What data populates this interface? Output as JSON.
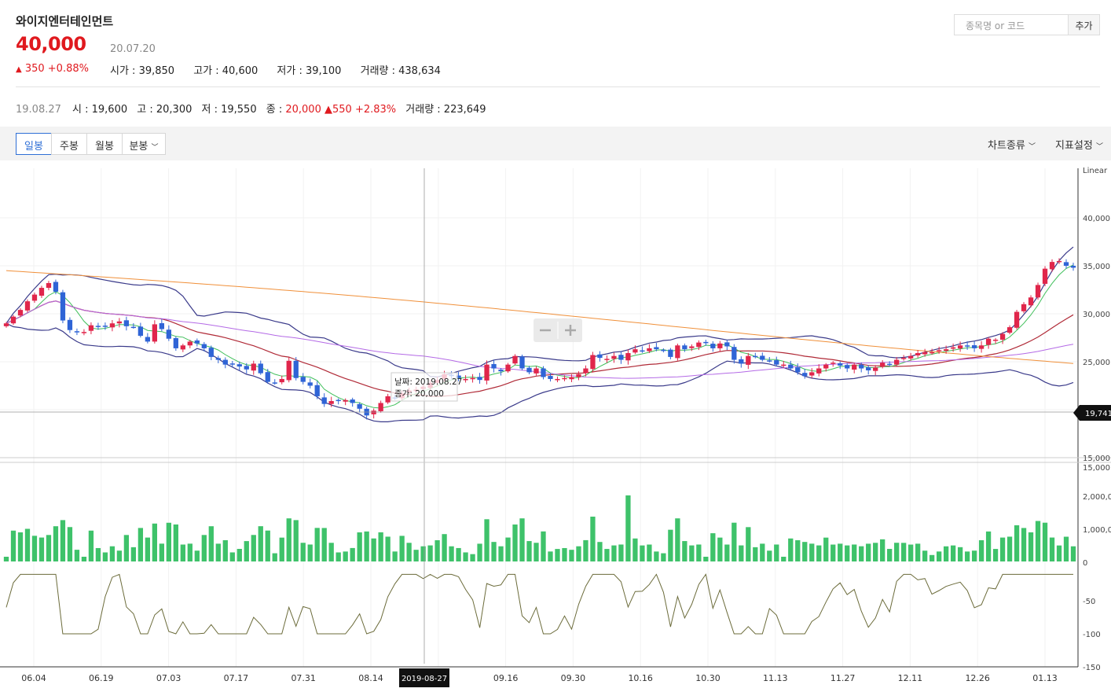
{
  "stock": {
    "name": "와이지엔터테인먼트",
    "price": "40,000",
    "date": "20.07.20",
    "change_arrow": "▲",
    "change": "350 +0.88%",
    "open": "시가 : 39,850",
    "high": "고가 : 40,600",
    "low": "저가 : 39,100",
    "volume": "거래량 : 438,634"
  },
  "search": {
    "placeholder": "종목명 or 코드",
    "add_label": "추가"
  },
  "hover": {
    "date": "19.08.27",
    "open": "시 : 19,600",
    "high": "고 : 20,300",
    "low": "저 : 19,550",
    "close_label": "종 :",
    "close": "20,000",
    "change": "▲550 +2.83%",
    "volume": "거래량 : 223,649"
  },
  "toolbar": {
    "tabs": [
      "일봉",
      "주봉",
      "월봉",
      "분봉"
    ],
    "active_tab": "일봉",
    "chart_type": "차트종류",
    "indicator": "지표설정"
  },
  "chart_data": {
    "type": "candlestick",
    "scale_label": "Linear",
    "price_ticks": [
      "40,000",
      "35,000",
      "30,000",
      "25,000",
      "15,000"
    ],
    "volume_ticks": [
      "15,000",
      "2,000,00",
      "1,000,00",
      "0"
    ],
    "indicator_ticks": [
      "-50",
      "-100",
      "-150"
    ],
    "current_marker": "19,741",
    "x_labels": [
      "06.04",
      "06.19",
      "07.03",
      "07.17",
      "07.31",
      "08.14",
      "2019-08-27",
      "09.16",
      "09.30",
      "10.16",
      "10.30",
      "11.13",
      "11.27",
      "12.11",
      "12.26",
      "01.13"
    ],
    "tooltip": {
      "date": "날짜: 2019.08.27",
      "close": "종가: 20,000"
    },
    "closes": [
      29000,
      29700,
      30400,
      31300,
      32000,
      32700,
      33200,
      32300,
      29300,
      28300,
      28100,
      28100,
      28800,
      28700,
      28700,
      29000,
      29200,
      28700,
      28600,
      27700,
      27100,
      28900,
      28400,
      27400,
      26400,
      26700,
      27100,
      26900,
      26400,
      25500,
      25200,
      24700,
      24800,
      24500,
      24200,
      24800,
      23800,
      22900,
      22800,
      23200,
      25100,
      23300,
      22900,
      22500,
      21400,
      20600,
      20900,
      20900,
      21000,
      20700,
      20100,
      19400,
      19900,
      20700,
      21400,
      21200,
      21700,
      22000,
      22100,
      22400,
      22800,
      23100,
      23700,
      23500,
      23300,
      23200,
      23300,
      23100,
      24700,
      24300,
      24000,
      24700,
      25600,
      24300,
      23900,
      24300,
      23400,
      23200,
      23200,
      23300,
      23400,
      23700,
      24300,
      25700,
      25400,
      25300,
      25600,
      25200,
      25900,
      26300,
      26100,
      26400,
      26300,
      26200,
      25500,
      26700,
      26300,
      26600,
      27000,
      27000,
      26400,
      26900,
      26600,
      25200,
      24800,
      25600,
      25500,
      25200,
      25100,
      24700,
      24700,
      24300,
      23900,
      23500,
      23900,
      24300,
      24700,
      24900,
      24600,
      24300,
      24700,
      24300,
      24100,
      24400,
      24900,
      24700,
      25200,
      25400,
      25600,
      25900,
      26000,
      26000,
      26200,
      26300,
      26500,
      26700,
      26600,
      26400,
      26700,
      27400,
      27300,
      27900,
      28600,
      30200,
      31000,
      31700,
      33000,
      34700,
      35400,
      35500,
      35000,
      34800
    ]
  }
}
